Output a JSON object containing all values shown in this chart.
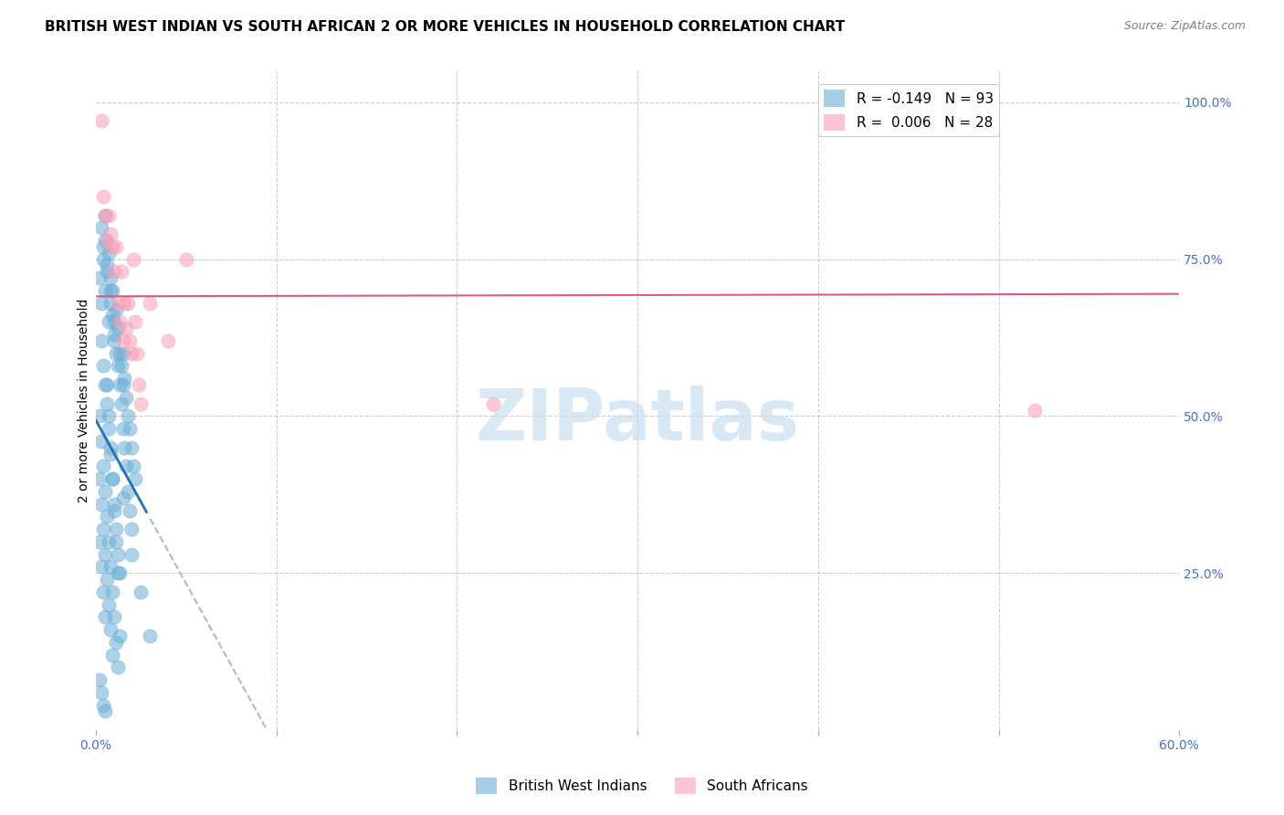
{
  "title": "BRITISH WEST INDIAN VS SOUTH AFRICAN 2 OR MORE VEHICLES IN HOUSEHOLD CORRELATION CHART",
  "source": "Source: ZipAtlas.com",
  "ylabel": "2 or more Vehicles in Household",
  "xlim": [
    0.0,
    0.6
  ],
  "ylim": [
    0.0,
    1.05
  ],
  "legend1_label": "R = -0.149   N = 93",
  "legend2_label": "R =  0.006   N = 28",
  "legend_xlabel": "British West Indians",
  "legend_ylabel": "South Africans",
  "blue_color": "#6baed6",
  "pink_color": "#fa9fb5",
  "trend_blue_color": "#2171b5",
  "trend_pink_color": "#e05a7a",
  "trend_dashed_color": "#b0b8cc",
  "watermark": "ZIPatlas",
  "watermark_color": "#c8dff0",
  "title_fontsize": 11,
  "axis_label_fontsize": 10,
  "tick_fontsize": 10,
  "blue_R": -0.149,
  "pink_R": 0.006,
  "blue_scatter_x": [
    0.002,
    0.003,
    0.004,
    0.005,
    0.005,
    0.006,
    0.007,
    0.008,
    0.008,
    0.009,
    0.01,
    0.01,
    0.011,
    0.012,
    0.013,
    0.014,
    0.015,
    0.015,
    0.016,
    0.017,
    0.018,
    0.019,
    0.02,
    0.021,
    0.022,
    0.003,
    0.004,
    0.005,
    0.006,
    0.007,
    0.008,
    0.009,
    0.01,
    0.011,
    0.012,
    0.013,
    0.014,
    0.015,
    0.016,
    0.017,
    0.018,
    0.019,
    0.02,
    0.003,
    0.004,
    0.005,
    0.006,
    0.007,
    0.008,
    0.009,
    0.01,
    0.011,
    0.012,
    0.013,
    0.002,
    0.003,
    0.004,
    0.005,
    0.006,
    0.007,
    0.008,
    0.009,
    0.01,
    0.011,
    0.012,
    0.002,
    0.003,
    0.004,
    0.005,
    0.006,
    0.007,
    0.008,
    0.009,
    0.002,
    0.003,
    0.004,
    0.005,
    0.015,
    0.02,
    0.025,
    0.03,
    0.002,
    0.003,
    0.004,
    0.005,
    0.006,
    0.007,
    0.008,
    0.009,
    0.01,
    0.011,
    0.012,
    0.013
  ],
  "blue_scatter_y": [
    0.72,
    0.68,
    0.75,
    0.7,
    0.78,
    0.73,
    0.65,
    0.68,
    0.72,
    0.7,
    0.65,
    0.62,
    0.67,
    0.64,
    0.6,
    0.58,
    0.55,
    0.6,
    0.56,
    0.53,
    0.5,
    0.48,
    0.45,
    0.42,
    0.4,
    0.8,
    0.77,
    0.82,
    0.74,
    0.76,
    0.7,
    0.66,
    0.63,
    0.6,
    0.58,
    0.55,
    0.52,
    0.48,
    0.45,
    0.42,
    0.38,
    0.35,
    0.32,
    0.62,
    0.58,
    0.55,
    0.52,
    0.48,
    0.44,
    0.4,
    0.36,
    0.32,
    0.28,
    0.25,
    0.5,
    0.46,
    0.42,
    0.38,
    0.34,
    0.3,
    0.26,
    0.22,
    0.18,
    0.14,
    0.1,
    0.4,
    0.36,
    0.32,
    0.28,
    0.24,
    0.2,
    0.16,
    0.12,
    0.3,
    0.26,
    0.22,
    0.18,
    0.37,
    0.28,
    0.22,
    0.15,
    0.08,
    0.06,
    0.04,
    0.03,
    0.55,
    0.5,
    0.45,
    0.4,
    0.35,
    0.3,
    0.25,
    0.15
  ],
  "pink_scatter_x": [
    0.003,
    0.004,
    0.005,
    0.006,
    0.007,
    0.008,
    0.009,
    0.01,
    0.011,
    0.012,
    0.013,
    0.014,
    0.015,
    0.016,
    0.017,
    0.018,
    0.019,
    0.02,
    0.021,
    0.022,
    0.023,
    0.024,
    0.025,
    0.03,
    0.04,
    0.05,
    0.22,
    0.52
  ],
  "pink_scatter_y": [
    0.97,
    0.85,
    0.82,
    0.78,
    0.82,
    0.79,
    0.77,
    0.73,
    0.77,
    0.68,
    0.65,
    0.73,
    0.62,
    0.68,
    0.64,
    0.68,
    0.62,
    0.6,
    0.75,
    0.65,
    0.6,
    0.55,
    0.52,
    0.68,
    0.62,
    0.75,
    0.52,
    0.51
  ]
}
